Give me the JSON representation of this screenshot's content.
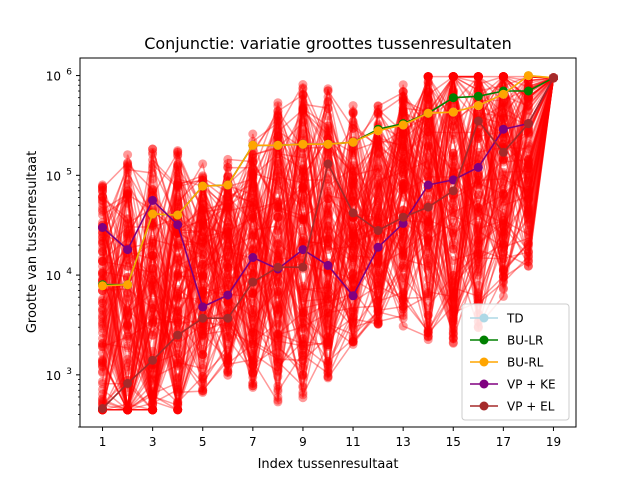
{
  "chart_data": {
    "type": "line",
    "title": "Conjunctie: variatie groottes tussenresultaten",
    "xlabel": "Index tussenresultaat",
    "ylabel": "Grootte van tussenresultaat",
    "x": [
      1,
      2,
      3,
      4,
      5,
      6,
      7,
      8,
      9,
      10,
      11,
      12,
      13,
      14,
      15,
      16,
      17,
      18,
      19
    ],
    "xticks": [
      1,
      3,
      5,
      7,
      9,
      11,
      13,
      15,
      17,
      19
    ],
    "xlim": [
      0.1,
      19.9
    ],
    "yscale": "log",
    "ylim": [
      300,
      1500000
    ],
    "yticks": [
      {
        "value": 1000,
        "base": "10",
        "exp": "3"
      },
      {
        "value": 10000,
        "base": "10",
        "exp": "4"
      },
      {
        "value": 100000,
        "base": "10",
        "exp": "5"
      },
      {
        "value": 1000000,
        "base": "10",
        "exp": "6"
      }
    ],
    "grid": false,
    "legend_position": "lower-right",
    "background_series": {
      "color": "#ff0000",
      "count": 120,
      "final_value": 950000
    },
    "series": [
      {
        "name": "TD",
        "color": "#add8e6",
        "values": [
          8000,
          8000,
          41000,
          40000,
          78000,
          80000,
          200000,
          200000,
          205000,
          205000,
          215000,
          280000,
          320000,
          420000,
          430000,
          500000,
          650000,
          1000000,
          950000
        ]
      },
      {
        "name": "BU-LR",
        "color": "#008000",
        "values": [
          8000,
          8000,
          41000,
          40000,
          78000,
          80000,
          200000,
          200000,
          205000,
          205000,
          215000,
          290000,
          330000,
          420000,
          600000,
          620000,
          700000,
          700000,
          950000
        ]
      },
      {
        "name": "BU-RL",
        "color": "#ffa500",
        "values": [
          7800,
          8000,
          41000,
          40000,
          78000,
          80000,
          200000,
          200000,
          205000,
          205000,
          215000,
          280000,
          320000,
          420000,
          430000,
          500000,
          650000,
          1000000,
          950000
        ]
      },
      {
        "name": "VP + KE",
        "color": "#800080",
        "values": [
          30000,
          18000,
          56000,
          32000,
          4800,
          6300,
          15000,
          11500,
          18000,
          12500,
          6200,
          19000,
          33000,
          80000,
          90000,
          120000,
          290000,
          330000,
          950000
        ]
      },
      {
        "name": "VP + EL",
        "color": "#a52a2a",
        "values": [
          460,
          820,
          1400,
          2500,
          3700,
          3700,
          8500,
          12000,
          12000,
          130000,
          42000,
          28000,
          38000,
          48000,
          70000,
          350000,
          170000,
          330000,
          950000
        ]
      }
    ]
  }
}
